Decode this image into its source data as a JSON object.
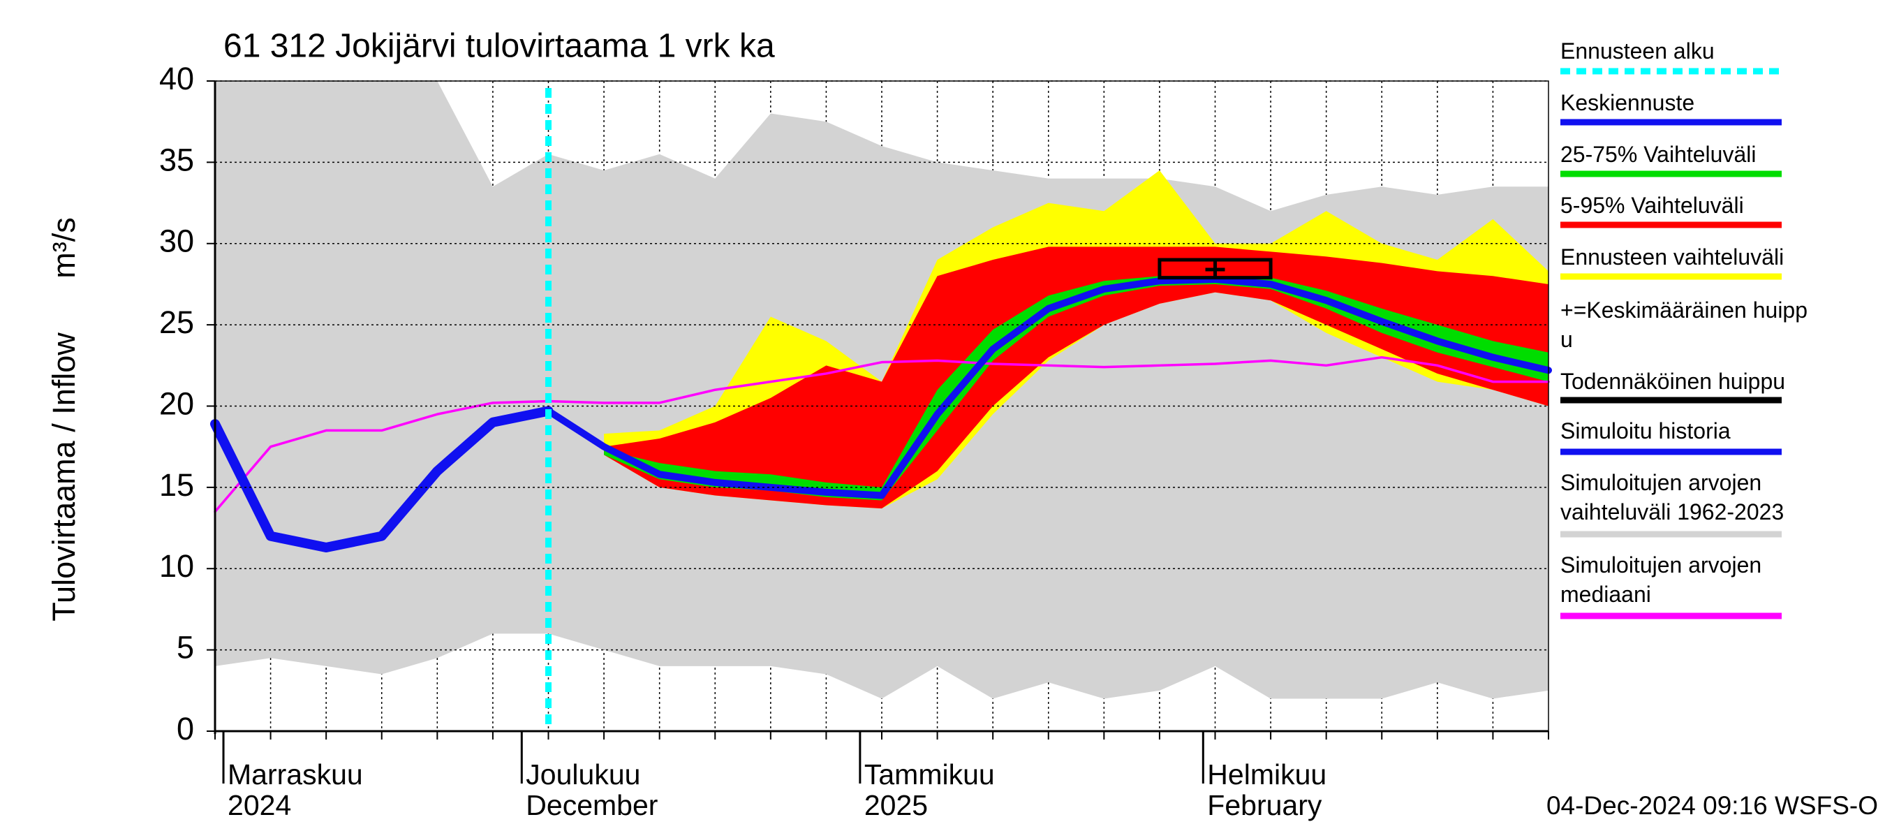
{
  "chart_data": {
    "type": "forecast-bands",
    "title": "61 312 Jokijärvi tulovirtaama 1 vrk ka",
    "ylabel": "Tulovirtaama / Inflow",
    "yunit": "m³/s",
    "ylim": [
      0,
      40
    ],
    "yticks": [
      0,
      5,
      10,
      15,
      20,
      25,
      30,
      35,
      40
    ],
    "grid": true,
    "xtick_labels": [
      [
        "Marraskuu",
        "2024"
      ],
      [
        "Joulukuu",
        "December"
      ],
      [
        "Tammikuu",
        "2025"
      ],
      [
        "Helmikuu",
        "February"
      ]
    ],
    "footer": "04-Dec-2024 09:16 WSFS-O",
    "series": [
      {
        "name": "Ennusteen alku",
        "color": "#00ffff",
        "style": "dashed"
      },
      {
        "name": "Keskiennuste",
        "color": "#1010f0",
        "values": [
          null,
          null,
          null,
          null,
          null,
          null,
          19.7,
          17.5,
          15.8,
          15.3,
          15.0,
          14.7,
          14.5,
          19.5,
          23.5,
          26.0,
          27.2,
          27.7,
          27.8,
          27.5,
          26.5,
          25.2,
          24.0,
          23.0,
          22.2
        ]
      },
      {
        "name": "25-75% Vaihteluväli",
        "color": "#00dd00",
        "low": [
          null,
          null,
          null,
          null,
          null,
          null,
          null,
          17.0,
          15.5,
          15.0,
          14.8,
          14.4,
          14.2,
          18.5,
          22.8,
          25.5,
          26.8,
          27.4,
          27.5,
          27.2,
          26.0,
          24.5,
          23.3,
          22.4,
          21.5
        ],
        "high": [
          null,
          null,
          null,
          null,
          null,
          null,
          null,
          17.3,
          16.5,
          16.0,
          15.8,
          15.3,
          15.0,
          21.0,
          24.7,
          26.8,
          27.7,
          28.0,
          28.0,
          27.9,
          27.1,
          26.0,
          25.0,
          24.0,
          23.3
        ]
      },
      {
        "name": "5-95% Vaihteluväli",
        "color": "#ff0000",
        "low": [
          null,
          null,
          null,
          null,
          null,
          null,
          null,
          17.0,
          15.0,
          14.5,
          14.2,
          13.9,
          13.7,
          16.0,
          20.0,
          23.0,
          25.0,
          26.3,
          27.0,
          26.5,
          25.0,
          23.5,
          22.0,
          21.0,
          20.0
        ],
        "high": [
          null,
          null,
          null,
          null,
          null,
          null,
          null,
          17.5,
          18.0,
          19.0,
          20.5,
          22.5,
          21.5,
          28.0,
          29.0,
          29.8,
          29.8,
          29.8,
          29.8,
          29.5,
          29.2,
          28.8,
          28.3,
          28.0,
          27.5
        ]
      },
      {
        "name": "Ennusteen vaihteluväli",
        "color": "#ffff00",
        "low": [
          null,
          null,
          null,
          null,
          null,
          null,
          null,
          17.0,
          15.0,
          14.5,
          14.2,
          13.9,
          13.7,
          15.5,
          19.5,
          22.8,
          25.0,
          26.3,
          27.0,
          26.5,
          24.5,
          23.0,
          21.5,
          21.0,
          20.0
        ],
        "high": [
          null,
          null,
          null,
          null,
          null,
          null,
          null,
          18.3,
          18.5,
          20.0,
          25.5,
          24.0,
          21.5,
          29.0,
          31.0,
          32.5,
          32.0,
          34.5,
          30.0,
          30.0,
          32.0,
          30.0,
          29.0,
          31.5,
          28.3
        ]
      },
      {
        "name": "+=Keskimääräinen huippu",
        "color": "#000000",
        "marker": "cross",
        "values": [
          null,
          null,
          null,
          null,
          null,
          null,
          null,
          null,
          null,
          null,
          null,
          null,
          null,
          null,
          null,
          null,
          null,
          null,
          28.4,
          null,
          null,
          null,
          null,
          null,
          null
        ]
      },
      {
        "name": "Todennäköinen huippu",
        "color": "#000000",
        "marker": "box",
        "low": [
          null,
          null,
          null,
          null,
          null,
          null,
          null,
          null,
          null,
          null,
          null,
          null,
          null,
          null,
          null,
          null,
          null,
          27.9,
          27.9,
          27.9,
          null,
          null,
          null,
          null,
          null
        ],
        "high": [
          null,
          null,
          null,
          null,
          null,
          null,
          null,
          null,
          null,
          null,
          null,
          null,
          null,
          null,
          null,
          null,
          null,
          29.0,
          29.0,
          29.0,
          null,
          null,
          null,
          null,
          null
        ]
      },
      {
        "name": "Simuloitu historia",
        "color": "#1010f0",
        "values": [
          18.9,
          12.0,
          11.3,
          12.0,
          16.0,
          19.0,
          19.7,
          null,
          null,
          null,
          null,
          null,
          null,
          null,
          null,
          null,
          null,
          null,
          null,
          null,
          null,
          null,
          null,
          null,
          null
        ]
      },
      {
        "name": "Simuloitujen arvojen vaihteluväli 1962-2023",
        "color": "#d3d3d3",
        "low": [
          4.0,
          4.5,
          4.0,
          3.5,
          4.5,
          6.0,
          6.0,
          5.0,
          4.0,
          4.0,
          4.0,
          3.5,
          2.0,
          4.0,
          2.0,
          3.0,
          2.0,
          2.5,
          4.0,
          2.0,
          2.0,
          2.0,
          3.0,
          2.0,
          2.5
        ],
        "high": [
          40.0,
          40.0,
          40.0,
          40.0,
          40.0,
          33.5,
          35.5,
          34.5,
          35.5,
          34.0,
          38.0,
          37.5,
          36.0,
          35.0,
          34.5,
          34.0,
          34.0,
          34.0,
          33.5,
          32.0,
          33.0,
          33.5,
          33.0,
          33.5,
          33.5
        ]
      },
      {
        "name": "Simuloitujen arvojen mediaani",
        "color": "#ff00ff",
        "values": [
          13.5,
          17.5,
          18.5,
          18.5,
          19.5,
          20.2,
          20.3,
          20.2,
          20.2,
          21.0,
          21.5,
          22.0,
          22.7,
          22.8,
          22.6,
          22.5,
          22.4,
          22.5,
          22.6,
          22.8,
          22.5,
          23.0,
          22.5,
          21.5,
          21.5
        ]
      }
    ]
  }
}
